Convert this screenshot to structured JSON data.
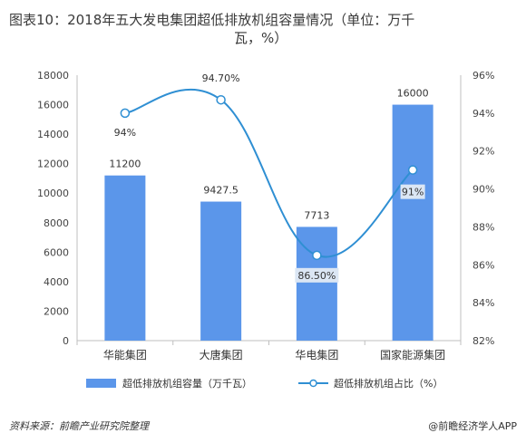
{
  "title": {
    "line1": "图表10：2018年五大发电集团超低排放机组容量情况（单位：万千",
    "line2": "瓦，%）"
  },
  "chart_data": {
    "type": "bar",
    "categories": [
      "华能集团",
      "大唐集团",
      "华电集团",
      "国家能源集团"
    ],
    "series": [
      {
        "name": "超低排放机组容量（万千瓦）",
        "type": "bar",
        "axis": "left",
        "color": "#5b96ea",
        "values": [
          11200,
          9427.5,
          7713,
          16000
        ],
        "labels": [
          "11200",
          "9427.5",
          "7713",
          "16000"
        ]
      },
      {
        "name": "超低排放机组占比（%）",
        "type": "line",
        "axis": "right",
        "color": "#2f8fd3",
        "values": [
          94,
          94.7,
          86.5,
          91
        ],
        "labels": [
          "94%",
          "94.70%",
          "86.50%",
          "91%"
        ]
      }
    ],
    "y_left": {
      "min": 0,
      "max": 18000,
      "ticks": [
        "0",
        "2000",
        "4000",
        "6000",
        "8000",
        "10000",
        "12000",
        "14000",
        "16000",
        "18000"
      ]
    },
    "y_right": {
      "min": 82,
      "max": 96,
      "ticks": [
        "82%",
        "84%",
        "86%",
        "88%",
        "90%",
        "92%",
        "94%",
        "96%"
      ]
    },
    "legend_position": "bottom",
    "grid": false
  },
  "footer": {
    "source": "资料来源：前瞻产业研究院整理",
    "brand": "@前瞻经济学人APP"
  }
}
